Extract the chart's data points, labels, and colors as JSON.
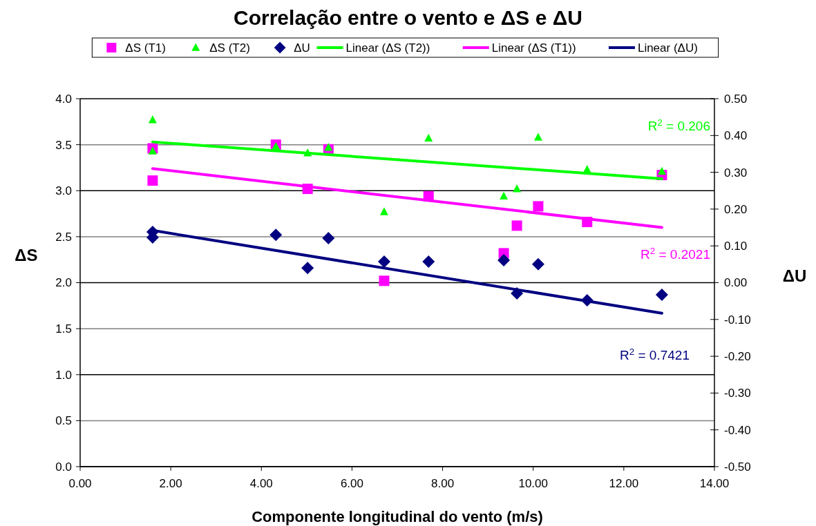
{
  "chart_data": {
    "type": "scatter",
    "title": "Correlação entre o vento e ΔS e ΔU",
    "xlabel": "Componente longitudinal do vento (m/s)",
    "ylabel": "ΔS",
    "y2label": "ΔU",
    "xlim": [
      0,
      14
    ],
    "xticks": [
      {
        "value": 0,
        "label": "0.00"
      },
      {
        "value": 2,
        "label": "2.00"
      },
      {
        "value": 4,
        "label": "4.00"
      },
      {
        "value": 6,
        "label": "6.00"
      },
      {
        "value": 8,
        "label": "8.00"
      },
      {
        "value": 10,
        "label": "10.00"
      },
      {
        "value": 12,
        "label": "12.00"
      },
      {
        "value": 14,
        "label": "14.00"
      }
    ],
    "ylim": [
      0,
      4
    ],
    "yticks": [
      {
        "value": 0,
        "label": "0.0"
      },
      {
        "value": 0.5,
        "label": "0.5"
      },
      {
        "value": 1,
        "label": "1.0"
      },
      {
        "value": 1.5,
        "label": "1.5"
      },
      {
        "value": 2,
        "label": "2.0"
      },
      {
        "value": 2.5,
        "label": "2.5"
      },
      {
        "value": 3,
        "label": "3.0"
      },
      {
        "value": 3.5,
        "label": "3.5"
      },
      {
        "value": 4,
        "label": "4.0"
      }
    ],
    "y2lim": [
      -0.5,
      0.5
    ],
    "y2ticks": [
      {
        "value": -0.5,
        "label": "-0.50"
      },
      {
        "value": -0.4,
        "label": "-0.40"
      },
      {
        "value": -0.3,
        "label": "-0.30"
      },
      {
        "value": -0.2,
        "label": "-0.20"
      },
      {
        "value": -0.1,
        "label": "-0.10"
      },
      {
        "value": 0,
        "label": "0.00"
      },
      {
        "value": 0.1,
        "label": "0.10"
      },
      {
        "value": 0.2,
        "label": "0.20"
      },
      {
        "value": 0.3,
        "label": "0.30"
      },
      {
        "value": 0.4,
        "label": "0.40"
      },
      {
        "value": 0.5,
        "label": "0.50"
      }
    ],
    "grid": "y",
    "legend": "top",
    "series": [
      {
        "name": "ΔS (T1)",
        "type": "scatter",
        "marker": "square",
        "color": "#ff00ff",
        "x": [
          1.6,
          1.6,
          4.32,
          5.48,
          5.02,
          6.71,
          7.69,
          9.35,
          9.64,
          10.11,
          11.19,
          12.84
        ],
        "values": [
          3.46,
          3.11,
          3.5,
          3.45,
          3.02,
          2.02,
          2.94,
          2.32,
          2.62,
          2.83,
          2.66,
          3.17
        ]
      },
      {
        "name": "ΔS (T2)",
        "type": "scatter",
        "marker": "triangle",
        "color": "#00ff00",
        "x": [
          1.6,
          1.6,
          4.32,
          5.02,
          5.48,
          6.71,
          7.69,
          9.35,
          9.64,
          10.11,
          11.19,
          12.84
        ],
        "values": [
          3.77,
          3.43,
          3.48,
          3.41,
          3.47,
          2.77,
          3.57,
          2.94,
          3.02,
          3.58,
          3.23,
          3.21
        ]
      },
      {
        "name": "ΔU",
        "type": "scatter",
        "marker": "diamond",
        "axis": "y2",
        "color": "#000080",
        "x": [
          1.6,
          1.6,
          4.32,
          5.02,
          5.48,
          6.71,
          7.69,
          9.35,
          9.64,
          10.11,
          11.19,
          12.84
        ],
        "values": [
          0.138,
          0.123,
          0.13,
          0.04,
          0.121,
          0.057,
          0.057,
          0.061,
          -0.029,
          0.05,
          -0.048,
          -0.033
        ]
      },
      {
        "name": "Linear (ΔS (T2))",
        "type": "line",
        "line_style": "solid",
        "color": "#00ff00",
        "x": [
          1.6,
          12.84
        ],
        "values": [
          3.53,
          3.13
        ]
      },
      {
        "name": "Linear (ΔS (T1))",
        "type": "line",
        "line_style": "solid",
        "color": "#ff00ff",
        "x": [
          1.6,
          12.84
        ],
        "values": [
          3.24,
          2.6
        ]
      },
      {
        "name": "Linear (ΔU)",
        "type": "line",
        "line_style": "solid",
        "axis": "y2",
        "color": "#000080",
        "x": [
          1.6,
          12.84
        ],
        "values": [
          0.142,
          -0.083
        ]
      }
    ],
    "annotations": [
      "R$^{2}$ = 0.206",
      "R$^{2}$ = 0.2021",
      "R$^{2}$ = 0.7421"
    ]
  }
}
